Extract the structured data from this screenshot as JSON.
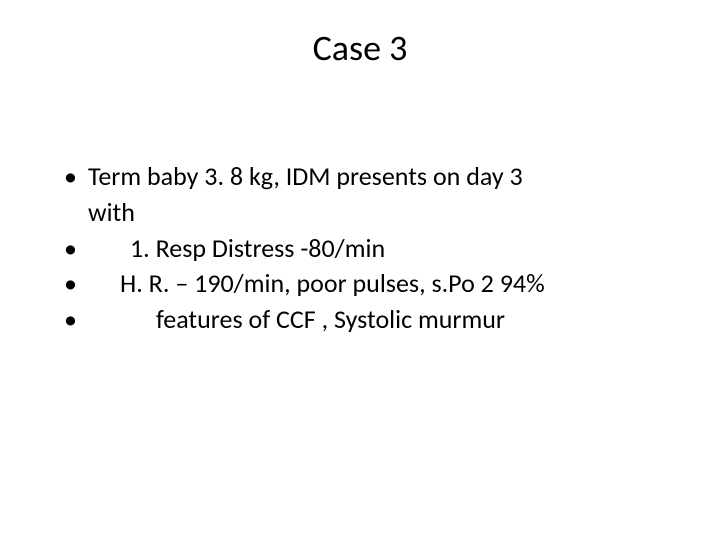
{
  "slide": {
    "title": "Case  3",
    "bullets": [
      {
        "marker": "•",
        "text": " Term baby 3. 8 kg, IDM  presents on  day 3",
        "continuation": "with"
      },
      {
        "marker": "•",
        "text": "1. Resp  Distress -80/min",
        "indent_class": "indent-1"
      },
      {
        "marker": "•",
        "text": "H. R. – 190/min,  poor pulses,  s.Po 2 94%",
        "indent_class": "indent-2"
      },
      {
        "marker": "•",
        "text": "features of CCF , Systolic murmur",
        "indent_class": "indent-3"
      }
    ]
  },
  "styling": {
    "background_color": "#ffffff",
    "text_color": "#000000",
    "title_fontsize": 36,
    "body_fontsize": 26,
    "font_family": "Calibri"
  }
}
